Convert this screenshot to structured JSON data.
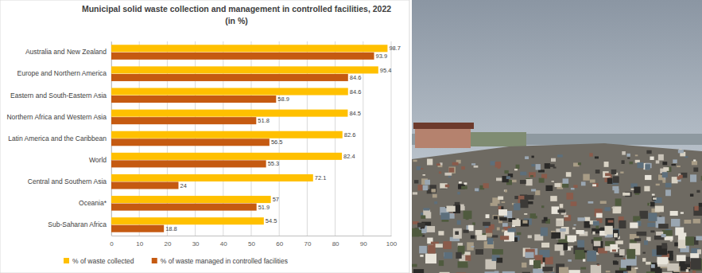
{
  "chart_data": {
    "type": "bar",
    "orientation": "horizontal",
    "title": "Municipal solid waste collection and management in controlled facilities, 2022",
    "subtitle": "(in %)",
    "categories": [
      "Australia and New Zealand",
      "Europe and Northern  America",
      "Eastern and South-Eastern Asia",
      "Northern Africa and Western Asia",
      "Latin America and the Caribbean",
      "World",
      "Central and Southern Asia",
      "Oceania*",
      "Sub-Saharan Africa"
    ],
    "series": [
      {
        "name": "% of waste collected",
        "color": "#ffc000",
        "values": [
          98.7,
          95.4,
          84.6,
          84.5,
          82.6,
          82.4,
          72.1,
          57,
          54.5
        ]
      },
      {
        "name": "% of waste managed in controlled facilities",
        "color": "#c55a11",
        "values": [
          93.9,
          84.6,
          58.9,
          51.8,
          56.5,
          55.3,
          24,
          51.9,
          18.8
        ]
      }
    ],
    "xlim": [
      0,
      100
    ],
    "xticks": [
      0,
      10,
      20,
      30,
      40,
      50,
      60,
      70,
      80,
      90,
      100
    ],
    "grid": true,
    "data_labels": true,
    "legend": "bottom"
  }
}
